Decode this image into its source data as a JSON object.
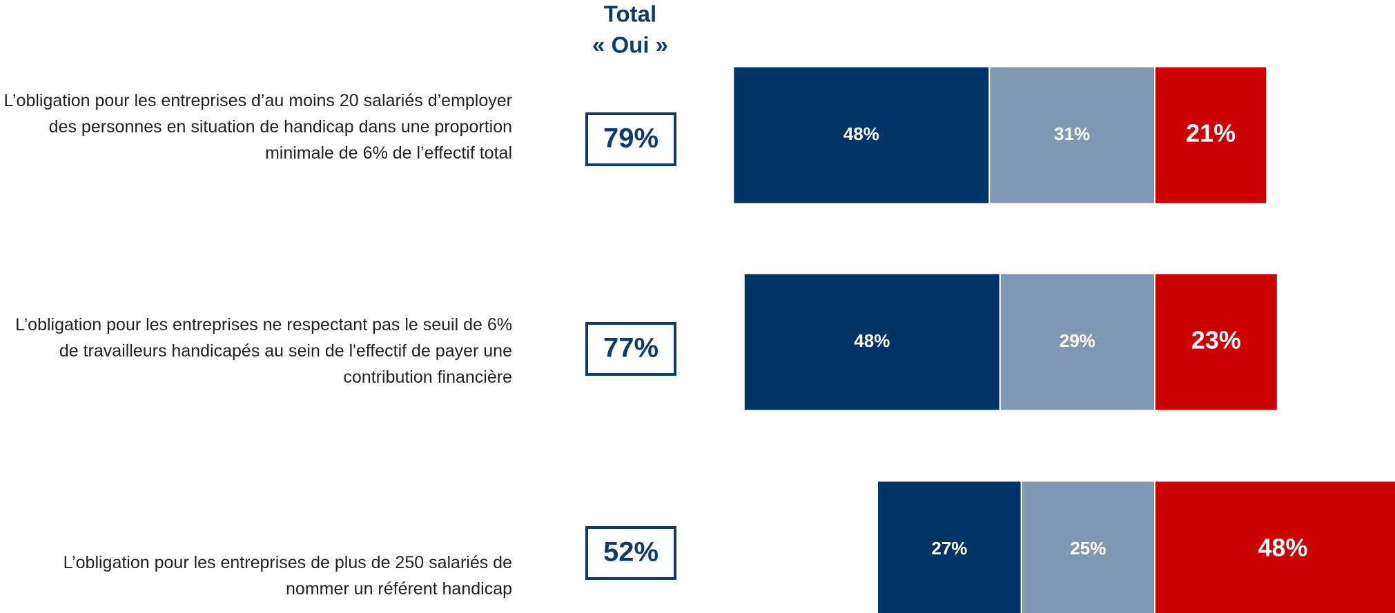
{
  "chart_data": {
    "type": "bar",
    "stacked": true,
    "diverging": true,
    "total_header": [
      "Total",
      "« Oui  »"
    ],
    "categories": [
      "L’obligation pour les entreprises d’au moins 20 salariés d’employer des personnes en situation de handicap dans une proportion minimale de 6% de l’effectif total",
      "L’obligation pour les entreprises ne respectant pas le seuil de 6% de travailleurs handicapés au sein de l'effectif de payer une contribution financière",
      "L’obligation pour les entreprises de plus de 250 salariés de nommer un référent handicap"
    ],
    "totals": {
      "color": "#0e3a6c",
      "values": [
        79,
        77,
        52
      ],
      "value_labels": [
        "79%",
        "77%",
        "52%"
      ]
    },
    "series": [
      {
        "color": "#003466",
        "values": [
          48,
          48,
          27
        ],
        "value_labels": [
          "48%",
          "48%",
          "27%"
        ]
      },
      {
        "color": "#7f99b2",
        "values": [
          31,
          29,
          25
        ],
        "value_labels": [
          "31%",
          "29%",
          "25%"
        ]
      },
      {
        "color": "#cc0000",
        "values": [
          21,
          23,
          48
        ],
        "value_labels": [
          "21%",
          "23%",
          "48%"
        ]
      }
    ]
  }
}
